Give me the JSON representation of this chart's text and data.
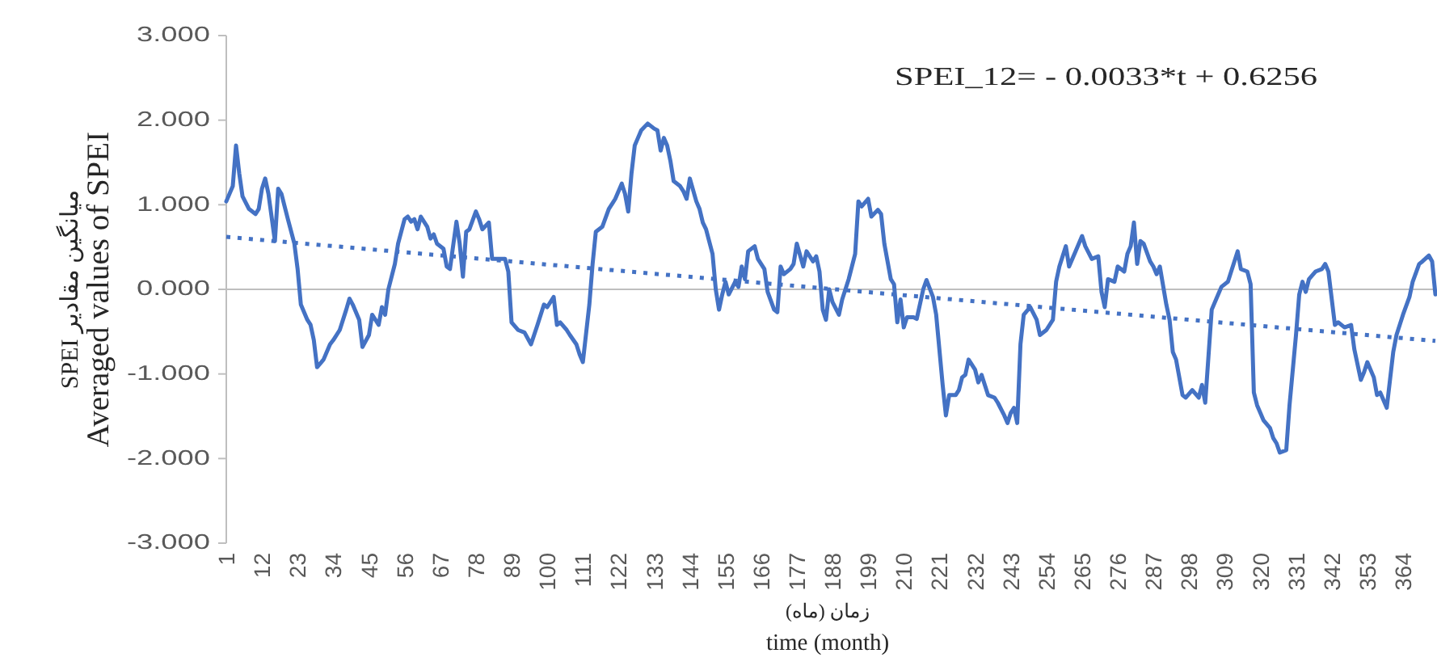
{
  "chart_data": {
    "type": "line",
    "xlabel": "زمان (ماه)\ntime (month)",
    "ylabel": "میانگین مقادیر SPEI\nAveraged values of SPEI",
    "annotations": [
      "SPEI_12= - 0.0033*t + 0.6256"
    ],
    "xlim": [
      1,
      374
    ],
    "xticks": [
      1,
      12,
      23,
      34,
      45,
      56,
      67,
      78,
      89,
      100,
      111,
      122,
      133,
      144,
      155,
      166,
      177,
      188,
      199,
      210,
      221,
      232,
      243,
      254,
      265,
      276,
      287,
      298,
      309,
      320,
      331,
      342,
      353,
      364
    ],
    "ylim": [
      -3,
      3
    ],
    "yticks": [
      {
        "value": -3,
        "label": "-3.000"
      },
      {
        "value": -2,
        "label": "-2.000"
      },
      {
        "value": -1,
        "label": "-1.000"
      },
      {
        "value": 0,
        "label": "0.000"
      },
      {
        "value": 1,
        "label": "1.000"
      },
      {
        "value": 2,
        "label": "2.000"
      },
      {
        "value": 3,
        "label": "3.000"
      }
    ],
    "series": [
      {
        "color": "#4472c4",
        "line_style": "solid",
        "x": [
          1,
          3,
          4,
          5,
          6,
          8,
          10,
          11,
          12,
          13,
          14,
          16,
          17,
          18,
          20,
          22,
          23,
          24,
          26,
          27,
          28,
          29,
          31,
          33,
          34,
          36,
          38,
          39,
          40,
          42,
          43,
          45,
          46,
          48,
          49,
          50,
          51,
          53,
          54,
          56,
          57,
          58,
          59,
          60,
          61,
          63,
          64,
          65,
          66,
          68,
          69,
          70,
          72,
          73,
          74,
          75,
          76,
          78,
          79,
          80,
          82,
          83,
          87,
          88,
          89,
          91,
          93,
          95,
          97,
          99,
          100,
          102,
          103,
          104,
          106,
          107,
          109,
          110,
          111,
          113,
          114,
          115,
          117,
          119,
          120,
          121,
          123,
          124,
          125,
          126,
          127,
          128,
          129,
          131,
          133,
          134,
          135,
          136,
          137,
          138,
          139,
          141,
          142,
          143,
          144,
          146,
          147,
          148,
          149,
          151,
          152,
          153,
          154,
          155,
          156,
          158,
          159,
          160,
          161,
          162,
          164,
          165,
          167,
          168,
          170,
          171,
          172,
          173,
          175,
          176,
          177,
          179,
          180,
          182,
          183,
          184,
          185,
          186,
          187,
          188,
          190,
          191,
          193,
          195,
          196,
          197,
          199,
          200,
          202,
          203,
          204,
          206,
          207,
          208,
          209,
          210,
          211,
          213,
          214,
          216,
          217,
          219,
          220,
          222,
          223,
          224,
          226,
          227,
          228,
          229,
          230,
          232,
          233,
          234,
          236,
          238,
          239,
          241,
          242,
          243,
          244,
          245,
          246,
          247,
          249,
          251,
          252,
          254,
          256,
          257,
          258,
          260,
          261,
          263,
          265,
          266,
          268,
          270,
          271,
          272,
          273,
          275,
          276,
          278,
          279,
          280,
          281,
          282,
          283,
          284,
          286,
          287,
          288,
          289,
          291,
          292,
          293,
          294,
          296,
          297,
          299,
          301,
          302,
          303,
          305,
          307,
          308,
          310,
          311,
          313,
          314,
          316,
          317,
          318,
          319,
          321,
          323,
          324,
          325,
          326,
          328,
          329,
          331,
          332,
          333,
          334,
          335,
          337,
          339,
          340,
          341,
          343,
          344,
          346,
          348,
          349,
          351,
          352,
          353,
          355,
          356,
          357,
          359,
          361,
          362,
          364,
          366,
          367,
          369,
          370,
          372,
          373,
          374
        ],
        "values": [
          1.04,
          1.22,
          1.7,
          1.37,
          1.1,
          0.95,
          0.89,
          0.95,
          1.19,
          1.31,
          1.13,
          0.57,
          1.19,
          1.13,
          0.83,
          0.54,
          0.24,
          -0.18,
          -0.36,
          -0.42,
          -0.6,
          -0.92,
          -0.83,
          -0.65,
          -0.6,
          -0.48,
          -0.24,
          -0.11,
          -0.18,
          -0.36,
          -0.68,
          -0.54,
          -0.3,
          -0.42,
          -0.21,
          -0.3,
          0.0,
          0.3,
          0.54,
          0.83,
          0.86,
          0.8,
          0.83,
          0.71,
          0.86,
          0.74,
          0.6,
          0.65,
          0.54,
          0.48,
          0.27,
          0.24,
          0.8,
          0.54,
          0.15,
          0.68,
          0.71,
          0.92,
          0.83,
          0.71,
          0.79,
          0.36,
          0.36,
          0.21,
          -0.39,
          -0.48,
          -0.51,
          -0.65,
          -0.42,
          -0.18,
          -0.21,
          -0.09,
          -0.42,
          -0.39,
          -0.48,
          -0.54,
          -0.65,
          -0.77,
          -0.86,
          -0.18,
          0.3,
          0.68,
          0.74,
          0.95,
          1.01,
          1.07,
          1.25,
          1.13,
          0.92,
          1.37,
          1.7,
          1.79,
          1.88,
          1.96,
          1.9,
          1.88,
          1.64,
          1.79,
          1.7,
          1.52,
          1.28,
          1.22,
          1.16,
          1.07,
          1.31,
          1.04,
          0.95,
          0.79,
          0.71,
          0.42,
          0.0,
          -0.24,
          -0.06,
          0.09,
          -0.06,
          0.09,
          0.03,
          0.27,
          0.12,
          0.45,
          0.51,
          0.36,
          0.24,
          -0.03,
          -0.24,
          -0.27,
          0.27,
          0.18,
          0.24,
          0.3,
          0.54,
          0.27,
          0.45,
          0.33,
          0.39,
          0.21,
          -0.24,
          -0.36,
          0.0,
          -0.15,
          -0.3,
          -0.12,
          0.12,
          0.42,
          1.04,
          0.98,
          1.07,
          0.86,
          0.94,
          0.89,
          0.54,
          0.12,
          0.06,
          -0.39,
          -0.12,
          -0.45,
          -0.33,
          -0.33,
          -0.35,
          0.0,
          0.11,
          -0.09,
          -0.3,
          -1.13,
          -1.49,
          -1.25,
          -1.25,
          -1.19,
          -1.04,
          -1.01,
          -0.83,
          -0.95,
          -1.1,
          -1.01,
          -1.25,
          -1.28,
          -1.34,
          -1.49,
          -1.58,
          -1.46,
          -1.4,
          -1.58,
          -0.65,
          -0.3,
          -0.21,
          -0.36,
          -0.54,
          -0.48,
          -0.36,
          0.09,
          0.27,
          0.51,
          0.27,
          0.45,
          0.63,
          0.51,
          0.36,
          0.39,
          -0.03,
          -0.21,
          0.12,
          0.09,
          0.27,
          0.21,
          0.42,
          0.51,
          0.79,
          0.3,
          0.57,
          0.54,
          0.33,
          0.27,
          0.18,
          0.27,
          -0.18,
          -0.36,
          -0.74,
          -0.83,
          -1.25,
          -1.28,
          -1.19,
          -1.28,
          -1.13,
          -1.34,
          -0.24,
          -0.06,
          0.03,
          0.09,
          0.21,
          0.45,
          0.24,
          0.21,
          0.06,
          -1.22,
          -1.37,
          -1.55,
          -1.64,
          -1.76,
          -1.82,
          -1.93,
          -1.9,
          -1.37,
          -0.54,
          -0.06,
          0.09,
          -0.03,
          0.12,
          0.21,
          0.24,
          0.3,
          0.21,
          -0.42,
          -0.39,
          -0.45,
          -0.42,
          -0.71,
          -1.07,
          -0.98,
          -0.86,
          -1.04,
          -1.25,
          -1.22,
          -1.4,
          -0.74,
          -0.54,
          -0.3,
          -0.09,
          0.09,
          0.3,
          0.33,
          0.4,
          0.33,
          -0.06
        ]
      },
      {
        "type": "line",
        "color": "#4472c4",
        "line_style": "dotted",
        "x": [
          1,
          374
        ],
        "values": [
          0.62,
          -0.61
        ]
      }
    ]
  }
}
